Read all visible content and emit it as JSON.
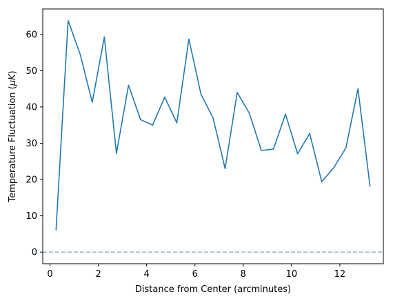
{
  "chart_data": {
    "type": "line",
    "title": "",
    "xlabel": "Distance from Center (arcminutes)",
    "ylabel_text": "Temperature Fluctuation (",
    "ylabel_mu": "μ",
    "ylabel_unit": "K",
    "ylabel_close": ")",
    "xlim": [
      -0.3,
      13.8
    ],
    "ylim": [
      -3.2,
      67
    ],
    "xticks": [
      0,
      2,
      4,
      6,
      8,
      10,
      12
    ],
    "yticks": [
      0,
      10,
      20,
      30,
      40,
      50,
      60
    ],
    "grid": false,
    "series": [
      {
        "color": "#1f77b4",
        "x": [
          0.25,
          0.75,
          1.25,
          1.75,
          2.25,
          2.75,
          3.25,
          3.75,
          4.25,
          4.75,
          5.25,
          5.75,
          6.25,
          6.75,
          7.25,
          7.75,
          8.25,
          8.75,
          9.25,
          9.75,
          10.25,
          10.75,
          11.25,
          11.75,
          12.25,
          12.75,
          13.25
        ],
        "y": [
          6.0,
          63.8,
          54.5,
          41.3,
          59.3,
          27.2,
          46.0,
          36.5,
          35.0,
          42.7,
          35.6,
          58.7,
          43.5,
          37.0,
          23.0,
          44.0,
          38.3,
          28.0,
          28.4,
          38.0,
          27.1,
          32.7,
          19.4,
          23.3,
          28.7,
          45.0,
          18.0
        ]
      }
    ],
    "reference_line": {
      "y": 0,
      "color": "#8fb6d9",
      "style": "dashed"
    }
  }
}
